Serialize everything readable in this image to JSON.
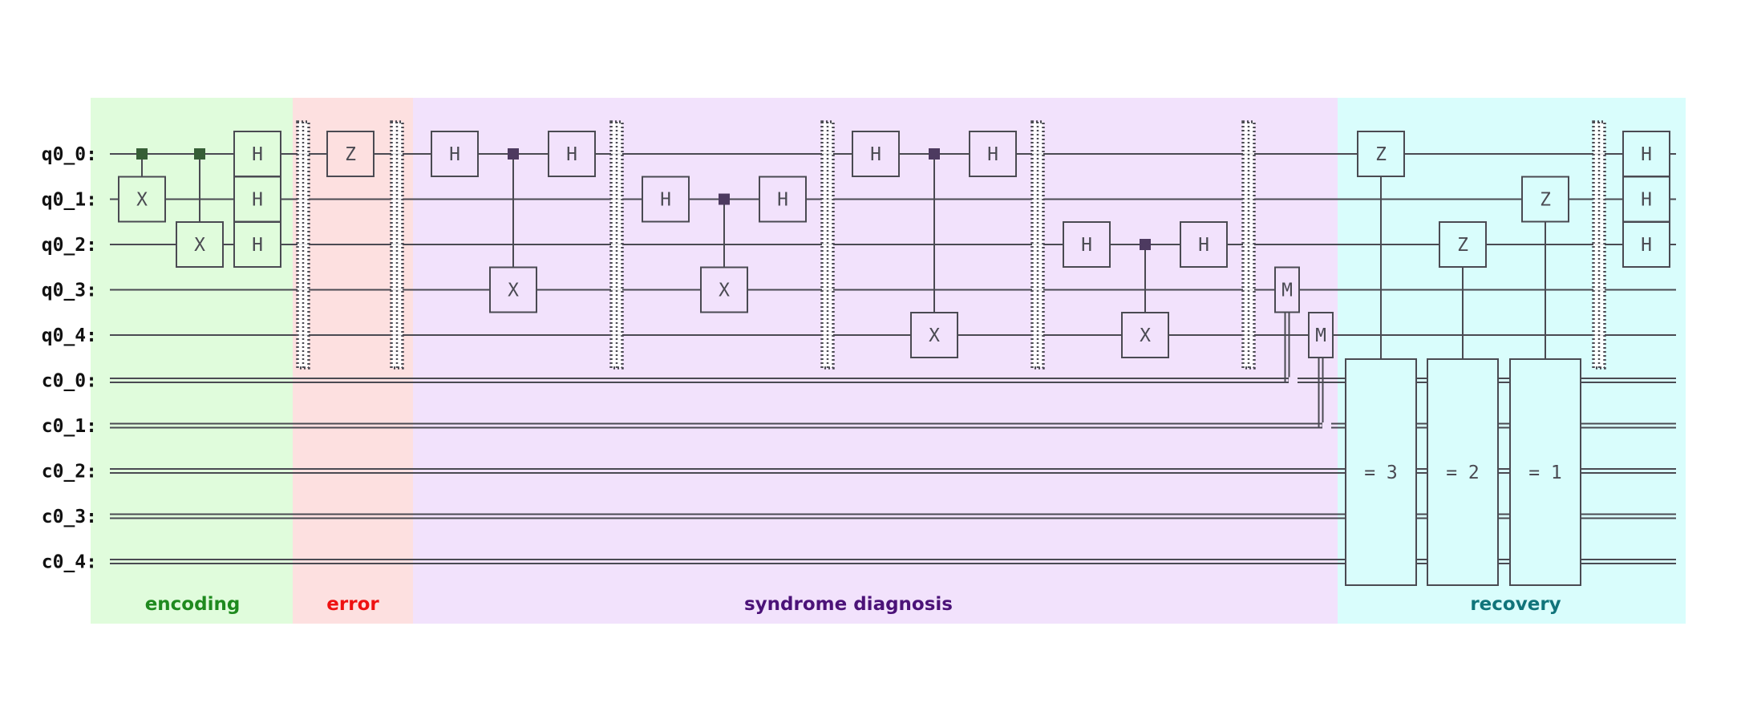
{
  "diagram": {
    "wire_color": "#4a4a52",
    "qubits": [
      "q0_0:",
      "q0_1:",
      "q0_2:",
      "q0_3:",
      "q0_4:"
    ],
    "clbits": [
      "c0_0:",
      "c0_1:",
      "c0_2:",
      "c0_3:",
      "c0_4:"
    ],
    "sections": [
      {
        "label": "encoding",
        "fill": "#e0fcdc",
        "text_color": "#1e8a1e"
      },
      {
        "label": "error",
        "fill": "#fde0e0",
        "text_color": "#ee1111"
      },
      {
        "label": "syndrome diagnosis",
        "fill": "#f2e2fc",
        "text_color": "#4b1278"
      },
      {
        "label": "recovery",
        "fill": "#d9fdfc",
        "text_color": "#10747a"
      }
    ],
    "gates": {
      "h": "H",
      "x": "X",
      "z": "Z",
      "measure": "M",
      "cond_3": "= 3",
      "cond_2": "= 2",
      "cond_1": "= 1"
    }
  }
}
